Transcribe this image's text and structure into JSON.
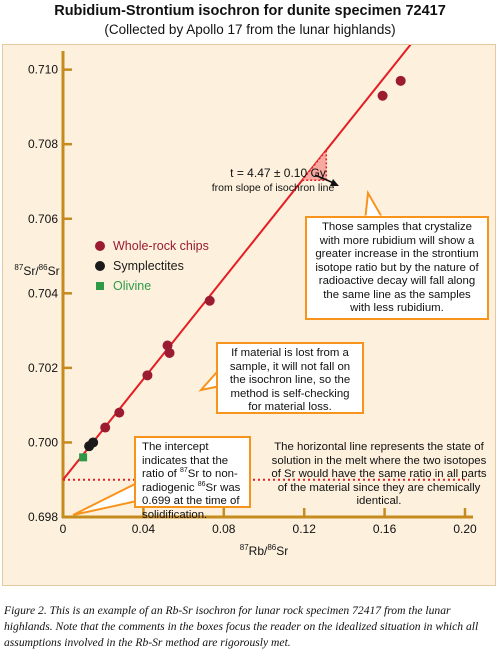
{
  "chart_data": {
    "type": "scatter",
    "title": "Rubidium-Strontium isochron for dunite specimen 72417",
    "subtitle": "(Collected by Apollo 17 from the lunar highlands)",
    "xlabel": "87Rb/86Sr",
    "ylabel": "87Sr/86Sr",
    "xlim": [
      0,
      0.2
    ],
    "ylim": [
      0.698,
      0.7105
    ],
    "x_ticks": [
      0,
      0.04,
      0.08,
      0.12,
      0.16,
      0.2
    ],
    "x_tick_labels": [
      "0",
      "0.04",
      "0.08",
      "0.12",
      "0.16",
      "0.20"
    ],
    "y_ticks": [
      0.698,
      0.7,
      0.702,
      0.704,
      0.706,
      0.708,
      0.71
    ],
    "y_tick_labels": [
      "0.698",
      "0.700",
      "0.702",
      "0.704",
      "0.706",
      "0.708",
      "0.710"
    ],
    "isochron": {
      "intercept": 0.699,
      "slope": 0.0675,
      "color": "#e31e24",
      "x_end": 0.175
    },
    "initial_ratio_line": {
      "y": 0.699,
      "color": "#e31e24",
      "style": "dotted"
    },
    "series": [
      {
        "name": "Whole-rock chips",
        "color": "#9b1b30",
        "marker": "circle",
        "points": [
          {
            "x": 0.021,
            "y": 0.7004
          },
          {
            "x": 0.028,
            "y": 0.7008
          },
          {
            "x": 0.042,
            "y": 0.7018
          },
          {
            "x": 0.052,
            "y": 0.7026
          },
          {
            "x": 0.053,
            "y": 0.7024
          },
          {
            "x": 0.073,
            "y": 0.7038
          },
          {
            "x": 0.159,
            "y": 0.7093
          },
          {
            "x": 0.168,
            "y": 0.7097
          }
        ]
      },
      {
        "name": "Symplectites",
        "color": "#1a1a1a",
        "marker": "circle",
        "points": [
          {
            "x": 0.013,
            "y": 0.6999
          },
          {
            "x": 0.015,
            "y": 0.7
          }
        ]
      },
      {
        "name": "Olivine",
        "color": "#2e9a48",
        "marker": "square",
        "points": [
          {
            "x": 0.01,
            "y": 0.6996
          }
        ]
      }
    ],
    "slope_triangle": {
      "x0": 0.119,
      "x1": 0.131,
      "color": "#e31e24"
    },
    "legend_placement": "left",
    "grid": false
  },
  "annotations": {
    "slope_label_main": "t = 4.47 ± 0.10 Gy",
    "slope_label_sub": "from slope of isochron line",
    "note_rubidium": "Those samples that crystalize with more rubidium will show a greater increase in the strontium isotope ratio but by the nature of radioactive decay will fall along the same line as the samples with less rubidium.",
    "note_material_loss": "If material is lost from a sample, it will not fall on the isochron line, so the method is self-checking for material loss.",
    "note_intercept_1": "The intercept indicates that the ratio of ",
    "note_intercept_sup1": "87",
    "note_intercept_2": "Sr to non-radiogenic ",
    "note_intercept_sup2": "86",
    "note_intercept_3": "Sr was 0.699 at the time of solidification.",
    "note_horizontal": "The horizontal line represents the state of solution in the melt where the two isotopes of Sr would have the same ratio in all parts of the material since they are chemically identical."
  },
  "caption": {
    "figure_label": "Figure 2.",
    "text": " This is an example of an Rb-Sr isochron for lunar rock specimen 72417 from the lunar highlands. Note that the comments in the boxes focus the reader on the idealized situation in which all assumptions involved in the Rb-Sr method are rigorously met."
  },
  "colors": {
    "axis": "#c58b1f",
    "isochron": "#e31e24",
    "note_border": "#f7941d",
    "background": "#fdf1de"
  }
}
